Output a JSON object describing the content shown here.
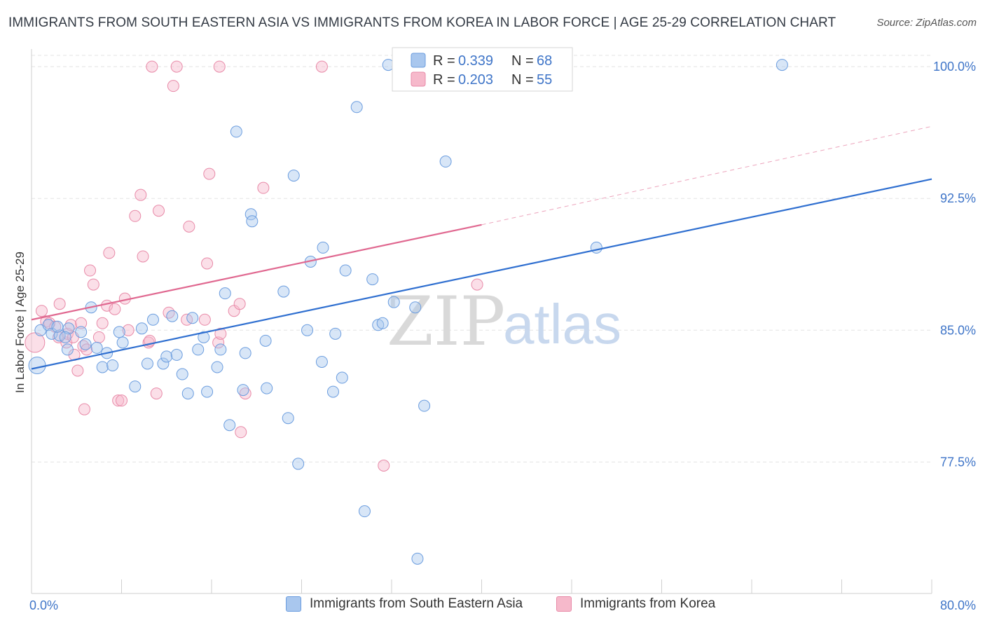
{
  "header": {
    "title": "IMMIGRANTS FROM SOUTH EASTERN ASIA VS IMMIGRANTS FROM KOREA IN LABOR FORCE | AGE 25-29 CORRELATION CHART",
    "source": "Source: ZipAtlas.com"
  },
  "watermark": {
    "zip": "ZIP",
    "atlas": "atlas"
  },
  "colors": {
    "blue_fill": "#a9c7ee",
    "blue_stroke": "#6b9ddf",
    "blue_line": "#2f6fd0",
    "pink_fill": "#f6b9cb",
    "pink_stroke": "#e88aa8",
    "pink_line": "#e06890",
    "tick_text": "#3f75c8",
    "grid": "#e3e3e3"
  },
  "legend": {
    "rows": [
      {
        "r_label": "R = ",
        "r_value": "0.339",
        "n_label": "N = ",
        "n_value": "68"
      },
      {
        "r_label": "R = ",
        "r_value": "0.203",
        "n_label": "N = ",
        "n_value": "55"
      }
    ]
  },
  "chart_data": {
    "type": "scatter",
    "title": "IMMIGRANTS FROM SOUTH EASTERN ASIA VS IMMIGRANTS FROM KOREA IN LABOR FORCE | AGE 25-29 CORRELATION CHART",
    "xlabel": "",
    "ylabel": "In Labor Force | Age 25-29",
    "xlim": [
      0,
      80
    ],
    "ylim": [
      70.5,
      101
    ],
    "x_tick_labels": [
      "0.0%",
      "80.0%"
    ],
    "y_ticks": [
      77.5,
      85.0,
      92.5,
      100.0
    ],
    "y_tick_labels": [
      "77.5%",
      "85.0%",
      "92.5%",
      "100.0%"
    ],
    "series": [
      {
        "name": "Immigrants from South Eastern Asia",
        "color": "blue",
        "R": 0.339,
        "N": 68,
        "trend": {
          "x0": 0,
          "y0": 82.8,
          "x1": 80,
          "y1": 93.6
        },
        "points": [
          {
            "x": 0.5,
            "y": 83.0,
            "s": 12
          },
          {
            "x": 0.8,
            "y": 85.0
          },
          {
            "x": 1.5,
            "y": 85.3
          },
          {
            "x": 1.8,
            "y": 84.8
          },
          {
            "x": 2.5,
            "y": 84.7
          },
          {
            "x": 3.3,
            "y": 85.1
          },
          {
            "x": 3.2,
            "y": 83.9
          },
          {
            "x": 4.4,
            "y": 84.9
          },
          {
            "x": 4.8,
            "y": 84.2
          },
          {
            "x": 5.3,
            "y": 86.3
          },
          {
            "x": 5.8,
            "y": 84.0
          },
          {
            "x": 6.3,
            "y": 82.9
          },
          {
            "x": 6.7,
            "y": 83.7
          },
          {
            "x": 7.2,
            "y": 83.0
          },
          {
            "x": 7.8,
            "y": 84.9
          },
          {
            "x": 8.1,
            "y": 84.3
          },
          {
            "x": 9.2,
            "y": 81.8
          },
          {
            "x": 9.8,
            "y": 85.1
          },
          {
            "x": 10.3,
            "y": 83.1
          },
          {
            "x": 10.8,
            "y": 85.6
          },
          {
            "x": 11.7,
            "y": 83.1
          },
          {
            "x": 12.0,
            "y": 83.5
          },
          {
            "x": 12.5,
            "y": 85.8
          },
          {
            "x": 12.9,
            "y": 83.6
          },
          {
            "x": 13.4,
            "y": 82.5
          },
          {
            "x": 13.9,
            "y": 81.4
          },
          {
            "x": 14.3,
            "y": 85.7
          },
          {
            "x": 14.8,
            "y": 83.9
          },
          {
            "x": 15.3,
            "y": 84.6
          },
          {
            "x": 15.6,
            "y": 81.5
          },
          {
            "x": 16.5,
            "y": 82.9
          },
          {
            "x": 16.8,
            "y": 83.9
          },
          {
            "x": 17.2,
            "y": 87.1
          },
          {
            "x": 17.6,
            "y": 79.6
          },
          {
            "x": 18.2,
            "y": 96.3
          },
          {
            "x": 18.8,
            "y": 81.6
          },
          {
            "x": 19.0,
            "y": 83.7
          },
          {
            "x": 19.5,
            "y": 91.6
          },
          {
            "x": 19.6,
            "y": 91.2
          },
          {
            "x": 20.8,
            "y": 84.4
          },
          {
            "x": 20.9,
            "y": 81.7
          },
          {
            "x": 22.4,
            "y": 87.2
          },
          {
            "x": 22.8,
            "y": 80.0
          },
          {
            "x": 23.3,
            "y": 93.8
          },
          {
            "x": 23.7,
            "y": 77.4
          },
          {
            "x": 24.5,
            "y": 85.0
          },
          {
            "x": 24.8,
            "y": 88.9
          },
          {
            "x": 25.8,
            "y": 83.2
          },
          {
            "x": 25.9,
            "y": 89.7
          },
          {
            "x": 26.8,
            "y": 81.5
          },
          {
            "x": 27.0,
            "y": 84.8
          },
          {
            "x": 27.6,
            "y": 82.3
          },
          {
            "x": 27.9,
            "y": 88.4
          },
          {
            "x": 28.9,
            "y": 97.7
          },
          {
            "x": 29.6,
            "y": 74.7
          },
          {
            "x": 30.3,
            "y": 87.9
          },
          {
            "x": 30.8,
            "y": 85.3
          },
          {
            "x": 31.2,
            "y": 85.4
          },
          {
            "x": 31.7,
            "y": 100.1
          },
          {
            "x": 32.2,
            "y": 86.6
          },
          {
            "x": 34.1,
            "y": 86.3
          },
          {
            "x": 34.3,
            "y": 72.0
          },
          {
            "x": 34.9,
            "y": 80.7
          },
          {
            "x": 36.8,
            "y": 94.6
          },
          {
            "x": 50.2,
            "y": 89.7
          },
          {
            "x": 66.7,
            "y": 100.1
          },
          {
            "x": 3.0,
            "y": 84.6
          },
          {
            "x": 2.3,
            "y": 85.2
          }
        ]
      },
      {
        "name": "Immigrants from Korea",
        "color": "pink",
        "R": 0.203,
        "N": 55,
        "trend": {
          "x0": 0,
          "y0": 85.6,
          "x1": 40,
          "y1": 91.0
        },
        "trend_dashed": {
          "x0": 40,
          "y0": 91.0,
          "x1": 80,
          "y1": 96.6
        },
        "points": [
          {
            "x": 0.3,
            "y": 84.3,
            "s": 14
          },
          {
            "x": 0.9,
            "y": 86.1
          },
          {
            "x": 1.3,
            "y": 85.5
          },
          {
            "x": 1.6,
            "y": 85.4
          },
          {
            "x": 2.1,
            "y": 85.2
          },
          {
            "x": 2.4,
            "y": 84.6
          },
          {
            "x": 2.5,
            "y": 86.5
          },
          {
            "x": 3.1,
            "y": 84.3
          },
          {
            "x": 3.2,
            "y": 84.8
          },
          {
            "x": 3.5,
            "y": 85.3
          },
          {
            "x": 3.7,
            "y": 84.6
          },
          {
            "x": 3.8,
            "y": 83.6
          },
          {
            "x": 4.1,
            "y": 82.7
          },
          {
            "x": 4.4,
            "y": 85.4
          },
          {
            "x": 4.6,
            "y": 84.1
          },
          {
            "x": 4.7,
            "y": 80.5
          },
          {
            "x": 4.9,
            "y": 83.9
          },
          {
            "x": 5.2,
            "y": 88.4
          },
          {
            "x": 5.5,
            "y": 87.6
          },
          {
            "x": 6.0,
            "y": 84.6
          },
          {
            "x": 6.3,
            "y": 85.4
          },
          {
            "x": 6.7,
            "y": 86.4
          },
          {
            "x": 6.9,
            "y": 89.4
          },
          {
            "x": 7.4,
            "y": 86.2
          },
          {
            "x": 7.7,
            "y": 81.0
          },
          {
            "x": 8.0,
            "y": 81.0
          },
          {
            "x": 8.3,
            "y": 86.8
          },
          {
            "x": 8.6,
            "y": 85.0
          },
          {
            "x": 9.2,
            "y": 91.5
          },
          {
            "x": 9.7,
            "y": 92.7
          },
          {
            "x": 9.9,
            "y": 89.2
          },
          {
            "x": 10.4,
            "y": 84.3
          },
          {
            "x": 10.5,
            "y": 84.4
          },
          {
            "x": 10.7,
            "y": 100.0
          },
          {
            "x": 11.1,
            "y": 81.4
          },
          {
            "x": 11.3,
            "y": 91.8
          },
          {
            "x": 12.2,
            "y": 86.0
          },
          {
            "x": 12.6,
            "y": 98.9
          },
          {
            "x": 12.9,
            "y": 100.0
          },
          {
            "x": 13.8,
            "y": 85.6
          },
          {
            "x": 14.0,
            "y": 90.9
          },
          {
            "x": 15.4,
            "y": 85.6
          },
          {
            "x": 15.6,
            "y": 88.8
          },
          {
            "x": 15.8,
            "y": 93.9
          },
          {
            "x": 16.6,
            "y": 84.3
          },
          {
            "x": 16.8,
            "y": 84.8
          },
          {
            "x": 16.7,
            "y": 100.0
          },
          {
            "x": 18.0,
            "y": 86.1
          },
          {
            "x": 18.5,
            "y": 86.5
          },
          {
            "x": 18.6,
            "y": 79.2
          },
          {
            "x": 19.0,
            "y": 81.4
          },
          {
            "x": 20.6,
            "y": 93.1
          },
          {
            "x": 25.8,
            "y": 100.0
          },
          {
            "x": 31.3,
            "y": 77.3
          },
          {
            "x": 39.6,
            "y": 87.6
          }
        ]
      }
    ]
  },
  "bottom_legend": {
    "items": [
      "Immigrants from South Eastern Asia",
      "Immigrants from Korea"
    ]
  }
}
